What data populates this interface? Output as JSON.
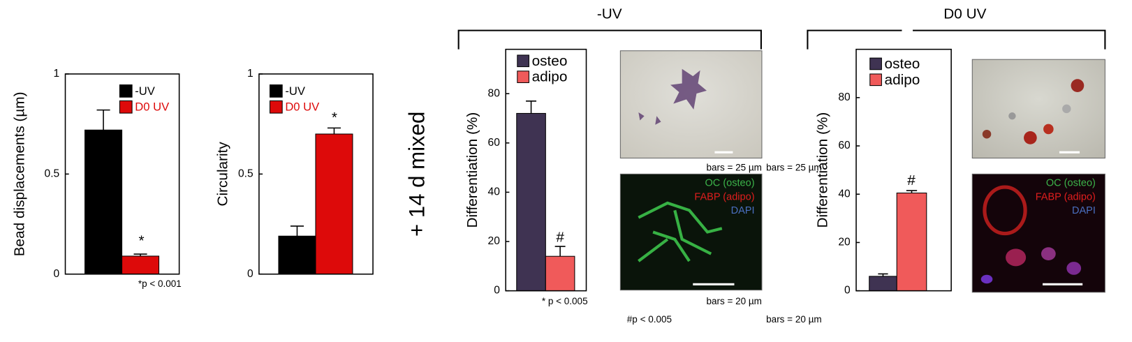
{
  "chart_data": [
    {
      "type": "bar",
      "ylabel": "Bead displacements (µm)",
      "categories": [
        null
      ],
      "series": [
        {
          "name": "-UV",
          "color": "#000000",
          "values": [
            0.72
          ],
          "errors": [
            0.1
          ]
        },
        {
          "name": "D0 UV",
          "color": "#dd0a0a",
          "values": [
            0.09
          ],
          "errors": [
            0.01
          ]
        }
      ],
      "ylim": [
        0,
        1
      ],
      "yticks": [
        0,
        0.5,
        1
      ],
      "annotations": [
        "*"
      ],
      "note": "*p < 0.001"
    },
    {
      "type": "bar",
      "ylabel": "Circularity",
      "categories": [
        null
      ],
      "series": [
        {
          "name": "-UV",
          "color": "#000000",
          "values": [
            0.19
          ],
          "errors": [
            0.05
          ]
        },
        {
          "name": "D0 UV",
          "color": "#dd0a0a",
          "values": [
            0.7
          ],
          "errors": [
            0.03
          ]
        }
      ],
      "ylim": [
        0,
        1
      ],
      "yticks": [
        0,
        0.5,
        1
      ],
      "annotations": [
        "*"
      ]
    },
    {
      "type": "bar",
      "ylabel": "Differentiation (%)",
      "categories": [
        null
      ],
      "series": [
        {
          "name": "osteo",
          "color": "#3f3352",
          "values": [
            72
          ],
          "errors": [
            5
          ]
        },
        {
          "name": "adipo",
          "color": "#f05a5a",
          "values": [
            14
          ],
          "errors": [
            4
          ]
        }
      ],
      "ylim": [
        0,
        98
      ],
      "yticks": [
        0,
        20,
        40,
        60,
        80
      ],
      "annotations": [
        "#"
      ],
      "note": "* p < 0.005"
    },
    {
      "type": "bar",
      "ylabel": "Differentiation (%)",
      "categories": [
        null
      ],
      "series": [
        {
          "name": "osteo",
          "color": "#3f3352",
          "values": [
            6
          ],
          "errors": [
            1
          ]
        },
        {
          "name": "adipo",
          "color": "#f05a5a",
          "values": [
            40.5
          ],
          "errors": [
            1
          ]
        }
      ],
      "ylim": [
        0,
        100
      ],
      "yticks": [
        0,
        20,
        40,
        60,
        80
      ],
      "annotations": [
        "#"
      ]
    }
  ],
  "figure": {
    "group_labels": [
      "-UV",
      "D0 UV"
    ],
    "side_label": "+ 14 d mixed",
    "micrographs": [
      {
        "scale": "bars = 25 µm"
      },
      {
        "stains": [
          "OC (osteo)",
          "FABP (adipo)",
          "DAPI"
        ],
        "scale": "bars = 20 µm",
        "note": "#p < 0.005"
      },
      {
        "scale": "bars = 25 µm"
      },
      {
        "stains": [
          "OC (osteo)",
          "FABP (adipo)",
          "DAPI"
        ],
        "scale": "bars = 20 µm"
      }
    ]
  }
}
